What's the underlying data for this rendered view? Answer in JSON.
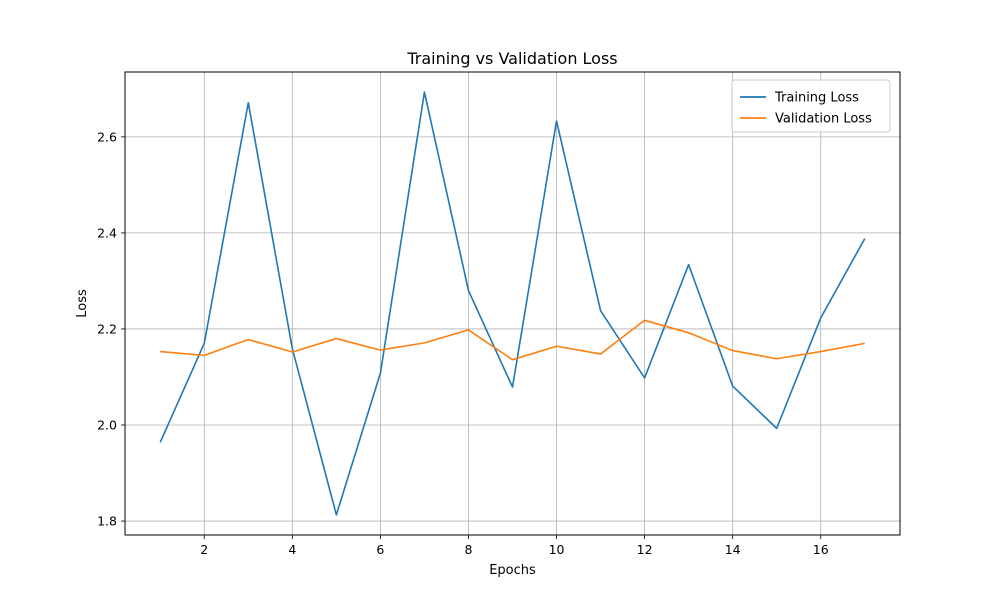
{
  "chart_data": {
    "type": "line",
    "title": "Training vs Validation Loss",
    "xlabel": "Epochs",
    "ylabel": "Loss",
    "xlim": [
      0.2,
      17.8
    ],
    "ylim": [
      1.771,
      2.735
    ],
    "xticks": [
      2,
      4,
      6,
      8,
      10,
      12,
      14,
      16
    ],
    "yticks": [
      1.8,
      2.0,
      2.2,
      2.4,
      2.6
    ],
    "ytick_labels": [
      "1.8",
      "2.0",
      "2.2",
      "2.4",
      "2.6"
    ],
    "grid": true,
    "legend_position": "top-right",
    "x": [
      1,
      2,
      3,
      4,
      5,
      6,
      7,
      8,
      9,
      10,
      11,
      12,
      13,
      14,
      15,
      16,
      17
    ],
    "series": [
      {
        "name": "Training Loss",
        "color": "#1f77b4",
        "values": [
          1.964,
          2.17,
          2.671,
          2.159,
          1.813,
          2.108,
          2.693,
          2.28,
          2.079,
          2.633,
          2.238,
          2.098,
          2.334,
          2.081,
          1.993,
          2.223,
          2.388
        ]
      },
      {
        "name": "Validation Loss",
        "color": "#ff7f0e",
        "values": [
          2.153,
          2.145,
          2.178,
          2.152,
          2.18,
          2.156,
          2.171,
          2.198,
          2.136,
          2.164,
          2.148,
          2.218,
          2.192,
          2.155,
          2.138,
          2.153,
          2.17
        ]
      }
    ]
  }
}
